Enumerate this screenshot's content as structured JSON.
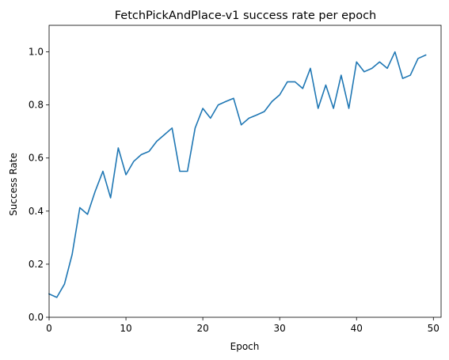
{
  "chart_data": {
    "type": "line",
    "title": "FetchPickAndPlace-v1 success rate per epoch",
    "xlabel": "Epoch",
    "ylabel": "Success Rate",
    "xlim": [
      0,
      51
    ],
    "ylim": [
      0,
      1.1
    ],
    "x_ticks": [
      "0",
      "10",
      "20",
      "30",
      "40",
      "50"
    ],
    "y_ticks": [
      "0.0",
      "0.2",
      "0.4",
      "0.6",
      "0.8",
      "1.0"
    ],
    "x_tick_values": [
      0,
      10,
      20,
      30,
      40,
      50
    ],
    "y_tick_values": [
      0,
      0.2,
      0.4,
      0.6,
      0.8,
      1.0
    ],
    "grid": false,
    "line_color": "#1f77b4",
    "series": [
      {
        "x": [
          0,
          1,
          2,
          3,
          4,
          5,
          6,
          7,
          8,
          9,
          10,
          11,
          12,
          13,
          14,
          15,
          16,
          17,
          18,
          19,
          20,
          21,
          22,
          23,
          24,
          25,
          26,
          27,
          28,
          29,
          30,
          31,
          32,
          33,
          34,
          35,
          36,
          37,
          38,
          39,
          40,
          41,
          42,
          43,
          44,
          45,
          46,
          47,
          48,
          49
        ],
        "values": [
          0.088,
          0.075,
          0.125,
          0.237,
          0.413,
          0.388,
          0.475,
          0.55,
          0.45,
          0.638,
          0.537,
          0.587,
          0.613,
          0.625,
          0.663,
          0.688,
          0.713,
          0.55,
          0.55,
          0.713,
          0.787,
          0.75,
          0.8,
          0.813,
          0.825,
          0.725,
          0.75,
          0.762,
          0.775,
          0.813,
          0.838,
          0.887,
          0.887,
          0.862,
          0.938,
          0.787,
          0.875,
          0.787,
          0.912,
          0.787,
          0.962,
          0.925,
          0.938,
          0.962,
          0.938,
          1.0,
          0.9,
          0.912,
          0.975,
          0.988
        ]
      }
    ]
  }
}
